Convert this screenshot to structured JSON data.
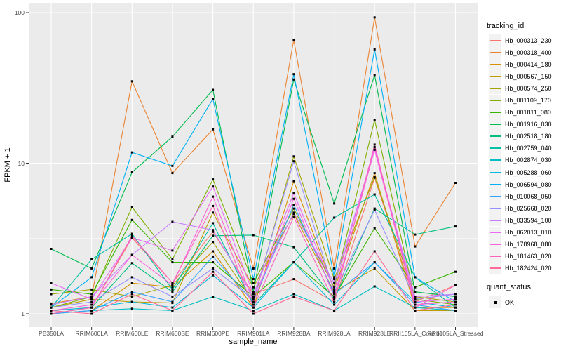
{
  "chart_data": {
    "type": "line",
    "title": "",
    "xlabel": "sample_name",
    "ylabel": "FPKM + 1",
    "yscale": "log10",
    "ylim": [
      0.95,
      110
    ],
    "yticks": [
      1,
      10,
      100
    ],
    "minor_gridlines": [
      3.162,
      31.62
    ],
    "grid": true,
    "legend_position": "right",
    "panel_bg": "#EBEBEB",
    "grid_color": "#FFFFFF",
    "marker": {
      "shape": "square",
      "color": "#000000"
    },
    "legends": {
      "tracking_id_title": "tracking_id",
      "quant_status_title": "quant_status",
      "quant_status_items": [
        "OK"
      ]
    },
    "categories": [
      "PB350LA",
      "RRIM600LA",
      "RRIM600LE",
      "RRIM600SE",
      "RRIM600PE",
      "RRIM901LA",
      "RRIM928BA",
      "RRIM928LA",
      "RRIM928LE",
      "RRII105LA_Control",
      "RRII105LA_Stressed"
    ],
    "series": [
      {
        "name": "Hb_000313_230",
        "color": "#F8766D",
        "values": [
          1.05,
          1.1,
          3.2,
          1.6,
          3.5,
          1.35,
          1.7,
          1.2,
          8.0,
          1.2,
          1.55
        ]
      },
      {
        "name": "Hb_000318_400",
        "color": "#EA8331",
        "values": [
          1.17,
          1.3,
          35.0,
          8.6,
          16.8,
          2.0,
          66.0,
          2.0,
          93.0,
          2.8,
          7.4
        ]
      },
      {
        "name": "Hb_000414_180",
        "color": "#D89000",
        "values": [
          1.0,
          1.05,
          1.6,
          1.5,
          2.6,
          1.1,
          7.6,
          1.45,
          8.6,
          1.1,
          1.1
        ]
      },
      {
        "name": "Hb_000567_150",
        "color": "#C09B00",
        "values": [
          1.1,
          1.25,
          1.2,
          1.18,
          4.7,
          1.5,
          4.6,
          1.4,
          2.0,
          1.05,
          1.05
        ]
      },
      {
        "name": "Hb_000574_250",
        "color": "#A3A500",
        "values": [
          1.35,
          1.45,
          1.3,
          1.55,
          3.0,
          1.2,
          11.1,
          1.7,
          8.1,
          1.3,
          1.2
        ]
      },
      {
        "name": "Hb_001109_170",
        "color": "#7CAE00",
        "values": [
          1.1,
          1.3,
          5.1,
          2.3,
          7.8,
          1.6,
          5.0,
          1.5,
          19.4,
          1.25,
          1.15
        ]
      },
      {
        "name": "Hb_001811_080",
        "color": "#39B600",
        "values": [
          1.45,
          1.35,
          4.2,
          2.2,
          2.2,
          1.3,
          2.2,
          1.3,
          3.7,
          1.5,
          1.9
        ]
      },
      {
        "name": "Hb_001916_030",
        "color": "#00BB4E",
        "values": [
          2.7,
          2.0,
          8.7,
          15.0,
          30.7,
          1.4,
          36.0,
          5.4,
          38.5,
          1.4,
          1.3
        ]
      },
      {
        "name": "Hb_002518_180",
        "color": "#00BF7D",
        "values": [
          1.0,
          1.1,
          2.17,
          1.4,
          3.3,
          3.33,
          2.77,
          1.25,
          5.0,
          3.36,
          3.8
        ]
      },
      {
        "name": "Hb_002759_040",
        "color": "#00C1A3",
        "values": [
          1.1,
          2.3,
          3.4,
          1.45,
          4.0,
          1.15,
          2.2,
          4.35,
          6.2,
          1.75,
          1.1
        ]
      },
      {
        "name": "Hb_002874_030",
        "color": "#00BFC4",
        "values": [
          1.0,
          1.05,
          1.08,
          1.05,
          1.3,
          1.05,
          1.35,
          1.05,
          1.52,
          1.1,
          1.05
        ]
      },
      {
        "name": "Hb_005288_060",
        "color": "#00BAE0",
        "values": [
          1.05,
          1.1,
          1.2,
          1.1,
          1.8,
          1.1,
          2.2,
          1.15,
          2.2,
          1.2,
          1.1
        ]
      },
      {
        "name": "Hb_006594_080",
        "color": "#00B0F6",
        "values": [
          1.1,
          1.75,
          11.8,
          9.6,
          26.7,
          1.7,
          39.0,
          1.75,
          57.0,
          1.75,
          1.2
        ]
      },
      {
        "name": "Hb_010068_050",
        "color": "#35A2FF",
        "values": [
          1.0,
          1.05,
          1.4,
          1.2,
          2.4,
          1.2,
          5.3,
          1.35,
          2.2,
          1.15,
          1.05
        ]
      },
      {
        "name": "Hb_025668_020",
        "color": "#9590FF",
        "values": [
          1.1,
          1.2,
          1.75,
          1.3,
          2.0,
          1.25,
          10.3,
          1.4,
          4.9,
          1.25,
          1.35
        ]
      },
      {
        "name": "Hb_033594_100",
        "color": "#C77CFF",
        "values": [
          1.15,
          1.3,
          2.46,
          4.08,
          3.6,
          1.3,
          4.7,
          1.6,
          12.3,
          1.3,
          1.35
        ]
      },
      {
        "name": "Hb_062013_010",
        "color": "#E76BF3",
        "values": [
          1.6,
          1.25,
          3.2,
          2.63,
          7.0,
          1.35,
          6.3,
          1.45,
          12.8,
          1.2,
          1.25
        ]
      },
      {
        "name": "Hb_178968_080",
        "color": "#FA62DB",
        "values": [
          1.05,
          1.15,
          2.46,
          1.55,
          6.0,
          1.2,
          5.8,
          1.3,
          12.3,
          1.15,
          1.2
        ]
      },
      {
        "name": "Hb_181463_020",
        "color": "#FF62BC",
        "values": [
          1.0,
          1.1,
          3.3,
          1.6,
          5.2,
          1.1,
          4.4,
          1.2,
          13.3,
          1.1,
          1.55
        ]
      },
      {
        "name": "Hb_182424_020",
        "color": "#FF6A98",
        "values": [
          1.05,
          1.0,
          1.35,
          1.05,
          1.9,
          1.0,
          1.3,
          1.05,
          2.6,
          1.05,
          1.15
        ]
      }
    ]
  }
}
